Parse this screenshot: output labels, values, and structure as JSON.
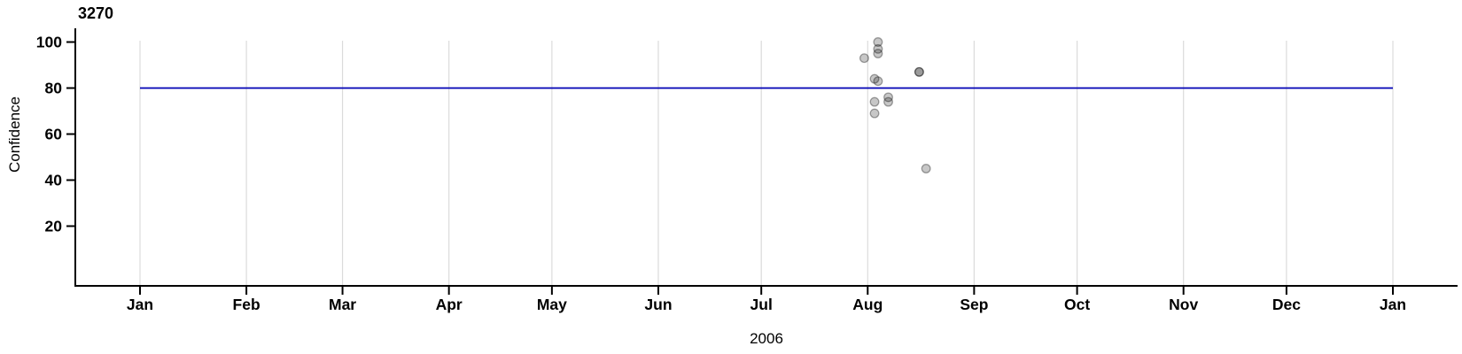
{
  "chart_data": {
    "type": "scatter",
    "title": "3270",
    "ylabel": "Confidence",
    "xlabel": "2006",
    "xlim": [
      "2006-01-01",
      "2007-01-01"
    ],
    "ylim": [
      -6,
      101
    ],
    "x_ticks": [
      {
        "label": "Jan",
        "day": 0
      },
      {
        "label": "Feb",
        "day": 31
      },
      {
        "label": "Mar",
        "day": 59
      },
      {
        "label": "Apr",
        "day": 90
      },
      {
        "label": "May",
        "day": 120
      },
      {
        "label": "Jun",
        "day": 151
      },
      {
        "label": "Jul",
        "day": 181
      },
      {
        "label": "Aug",
        "day": 212
      },
      {
        "label": "Sep",
        "day": 243
      },
      {
        "label": "Oct",
        "day": 273
      },
      {
        "label": "Nov",
        "day": 304
      },
      {
        "label": "Dec",
        "day": 334
      },
      {
        "label": "Jan",
        "day": 365
      }
    ],
    "y_ticks": [
      20,
      40,
      60,
      80,
      100
    ],
    "grid": {
      "show": true,
      "color": "#DBDBDB"
    },
    "legend": "none",
    "reference_line": {
      "value": 80,
      "color": "#0000B4"
    },
    "marker": {
      "shape": "circle",
      "radius": 4.8,
      "fill": "rgba(0,0,0,0.22)",
      "stroke": "rgba(0,0,0,0.35)"
    },
    "points": [
      {
        "date": "2006-07-31",
        "day": 211,
        "confidence": 93
      },
      {
        "date": "2006-08-03",
        "day": 214,
        "confidence": 84
      },
      {
        "date": "2006-08-03",
        "day": 214,
        "confidence": 74
      },
      {
        "date": "2006-08-03",
        "day": 214,
        "confidence": 69
      },
      {
        "date": "2006-08-04",
        "day": 215,
        "confidence": 100
      },
      {
        "date": "2006-08-04",
        "day": 215,
        "confidence": 97
      },
      {
        "date": "2006-08-04",
        "day": 215,
        "confidence": 95
      },
      {
        "date": "2006-08-04",
        "day": 215,
        "confidence": 83
      },
      {
        "date": "2006-08-07",
        "day": 218,
        "confidence": 76
      },
      {
        "date": "2006-08-07",
        "day": 218,
        "confidence": 74
      },
      {
        "date": "2006-08-16",
        "day": 227,
        "confidence": 87
      },
      {
        "date": "2006-08-16",
        "day": 227,
        "confidence": 87
      },
      {
        "date": "2006-08-18",
        "day": 229,
        "confidence": 45
      }
    ],
    "axis_color": "#000000"
  }
}
